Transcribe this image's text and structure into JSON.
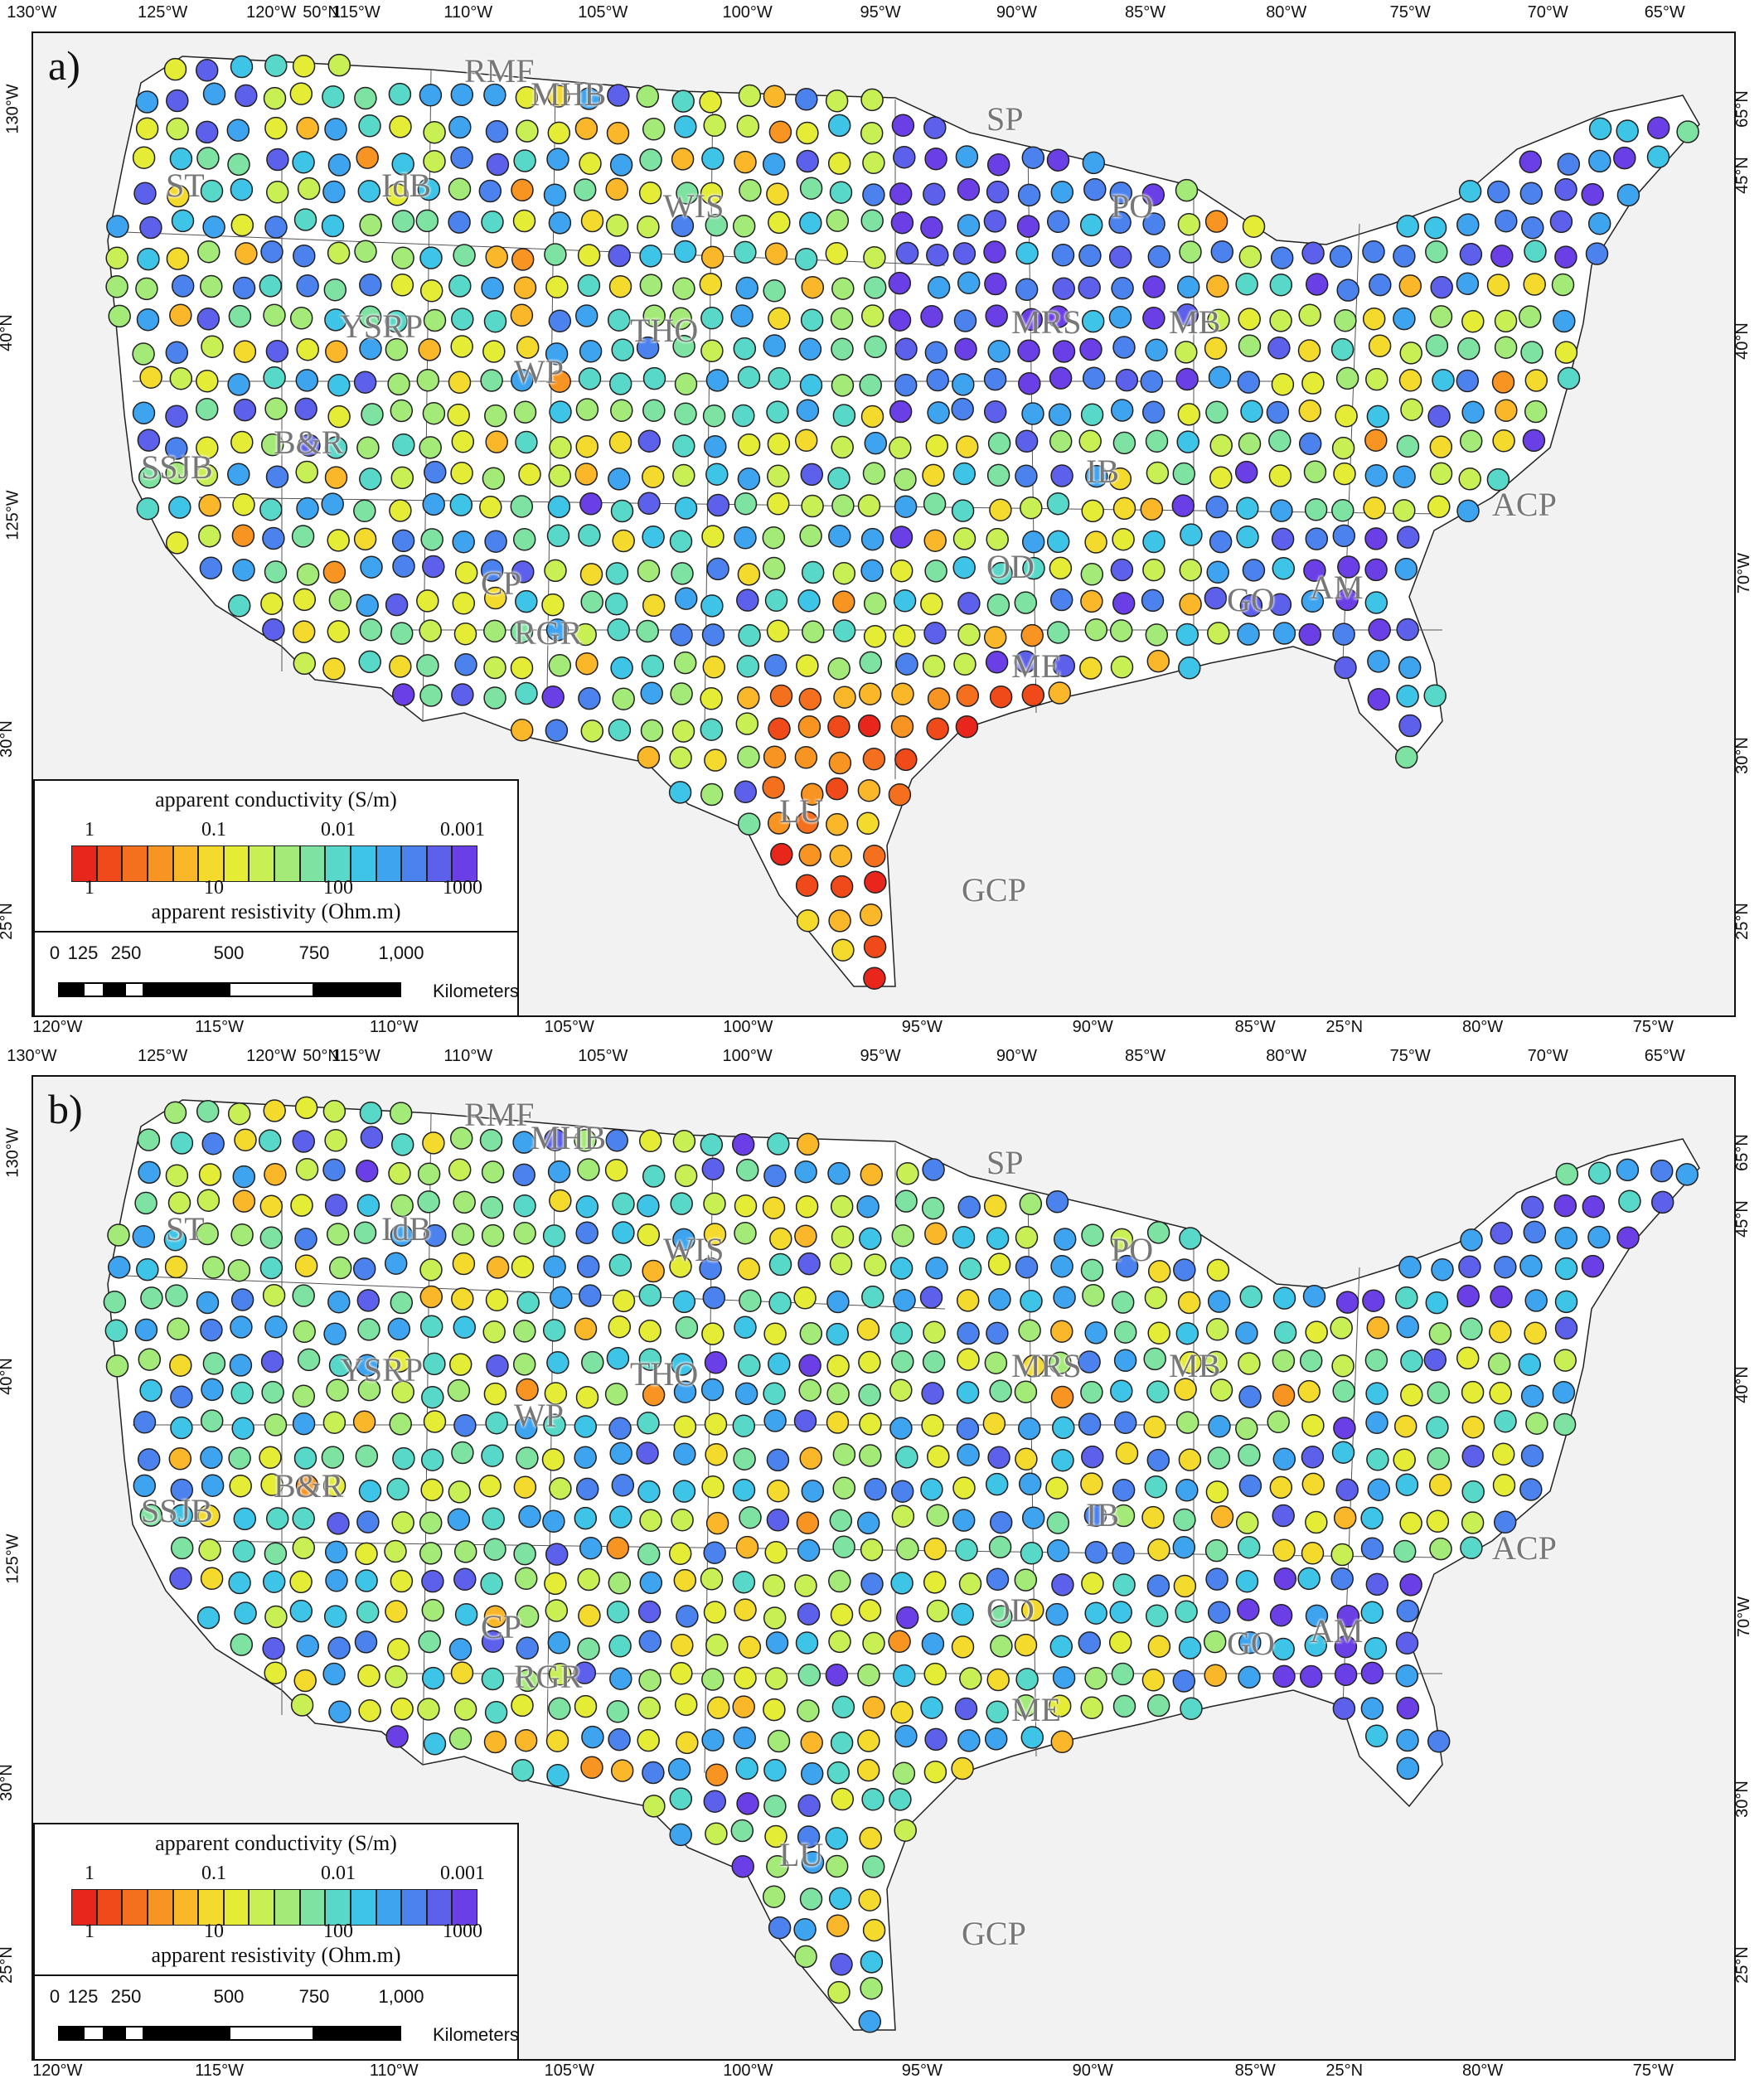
{
  "panels": [
    {
      "id": "a",
      "label": "a)",
      "dot_seed": 7,
      "south_red": true
    },
    {
      "id": "b",
      "label": "b)",
      "dot_seed": 19,
      "south_red": false
    }
  ],
  "top_axis": [
    "130°W",
    "125°W",
    "120°W",
    "50°N",
    "115°W",
    "110°W",
    "105°W",
    "100°W",
    "95°W",
    "90°W",
    "85°W",
    "80°W",
    "75°W",
    "70°W",
    "65°W"
  ],
  "bottom_axis": [
    "120°W",
    "115°W",
    "110°W",
    "105°W",
    "100°W",
    "95°W",
    "90°W",
    "85°W",
    "25°N",
    "80°W",
    "75°W"
  ],
  "left_axis": [
    "130°W",
    "40°N",
    "125°W",
    "30°N",
    "25°N"
  ],
  "right_axis": [
    "65°N",
    "45°N",
    "40°N",
    "70°W",
    "30°N",
    "25°N"
  ],
  "regions": [
    "RMF",
    "MHB",
    "SP",
    "ST",
    "IdB",
    "WIS",
    "PO",
    "YSRP",
    "THO",
    "MRS",
    "MB",
    "WP",
    "B&R",
    "SSJB",
    "IB",
    "ACP",
    "OD",
    "CP",
    "GO",
    "AM",
    "RGR",
    "ME",
    "LU",
    "GCP"
  ],
  "legend": {
    "title_top": "apparent conductivity (S/m)",
    "title_bottom": "apparent resistivity (Ohm.m)",
    "top_ticks": [
      "1",
      "0.1",
      "0.01",
      "0.001"
    ],
    "bottom_ticks": [
      "1",
      "10",
      "100",
      "1000"
    ],
    "colors": [
      "#e8261c",
      "#f04a1a",
      "#f46f1e",
      "#f89422",
      "#fbb72a",
      "#f4da2c",
      "#e4ec36",
      "#c8ef54",
      "#a4ea78",
      "#7ee3a2",
      "#58d8c8",
      "#3ec4e6",
      "#3fa4ef",
      "#4c82ee",
      "#5d60ea",
      "#6a3fe6"
    ]
  },
  "scale": {
    "labels": [
      "0",
      "125",
      "250",
      "500",
      "750",
      "1,000"
    ],
    "unit": "Kilometers"
  }
}
